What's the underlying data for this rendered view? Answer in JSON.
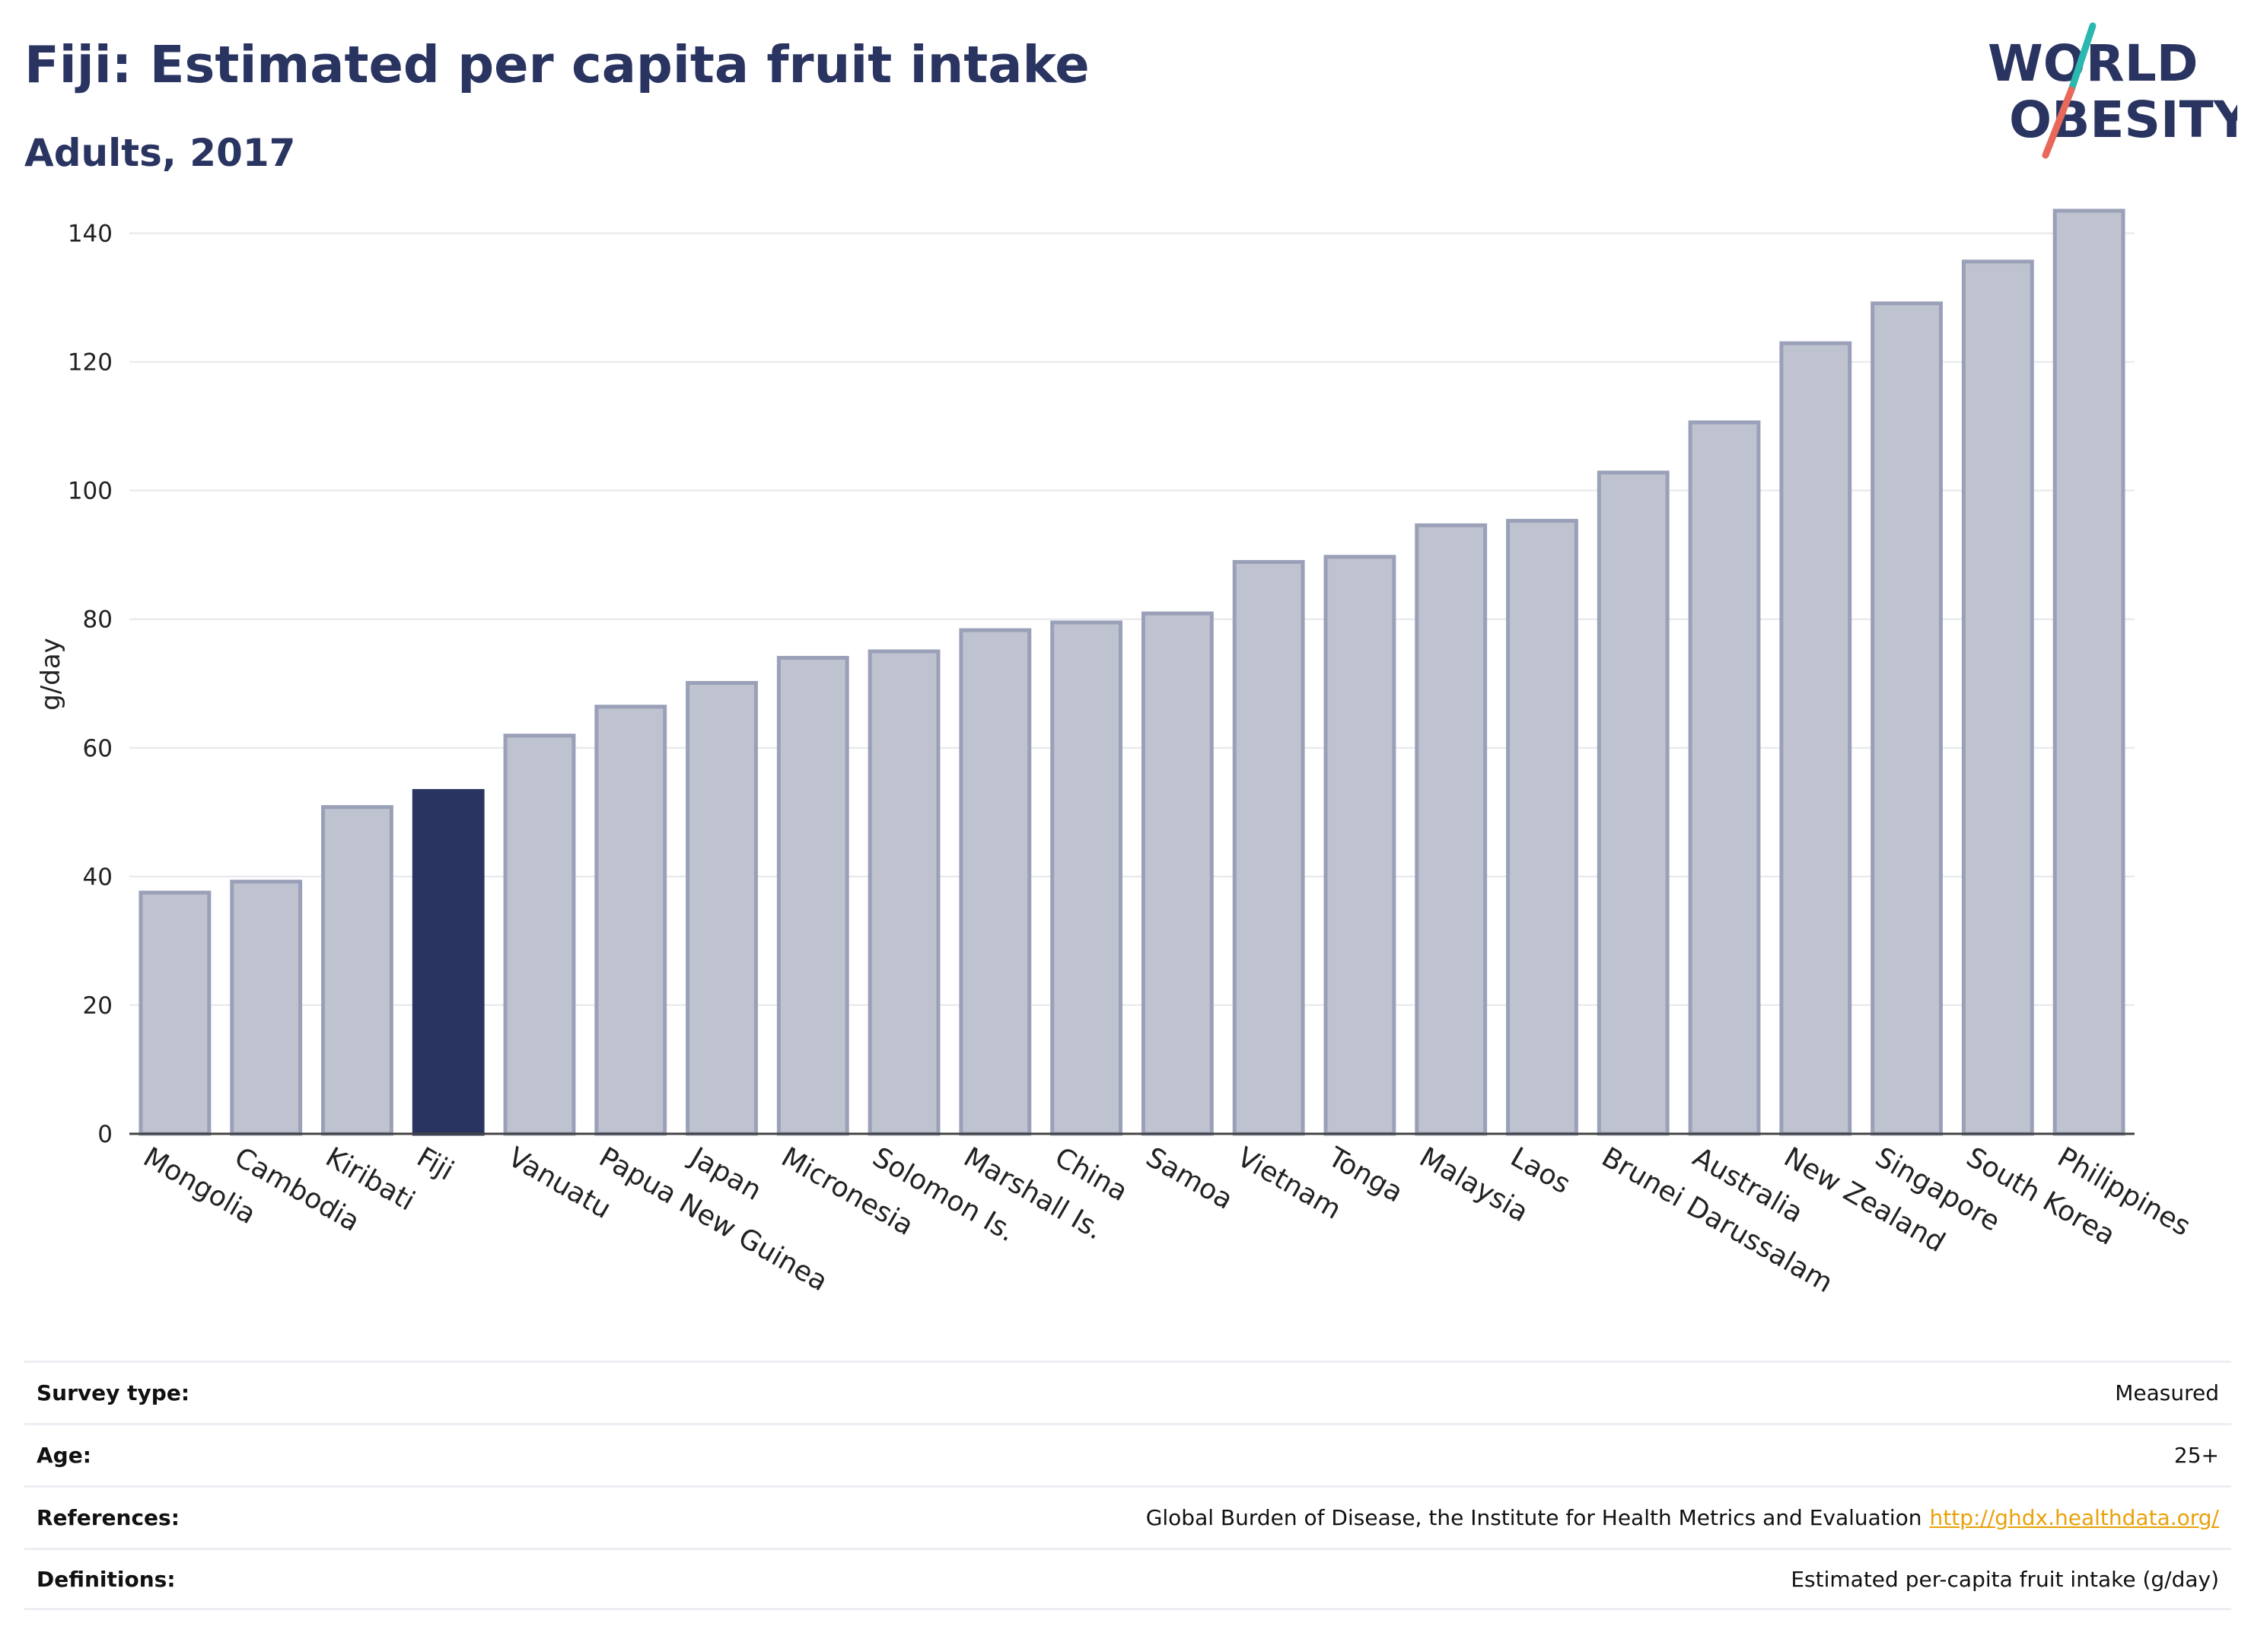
{
  "header": {
    "title": "Fiji: Estimated per capita fruit intake",
    "subtitle": "Adults, 2017"
  },
  "logo": {
    "line1": "WORLD",
    "line2": "OBESITY",
    "colors": {
      "text": "#2a3461",
      "slash_top": "#2bb8b0",
      "slash_bottom": "#e8685a"
    }
  },
  "chart_data": {
    "type": "bar",
    "ylabel": "g/day",
    "ylim": [
      0,
      150
    ],
    "yticks": [
      0,
      20,
      40,
      60,
      80,
      100,
      120,
      140
    ],
    "grid": true,
    "categories": [
      "Mongolia",
      "Cambodia",
      "Kiribati",
      "Fiji",
      "Vanuatu",
      "Papua New Guinea",
      "Japan",
      "Micronesia",
      "Solomon Is.",
      "Marshall Is.",
      "China",
      "Samoa",
      "Vietnam",
      "Tonga",
      "Malaysia",
      "Laos",
      "Brunei Darussalam",
      "Australia",
      "New Zealand",
      "Singapore",
      "South Korea",
      "Philippines"
    ],
    "values": [
      37.5,
      39.2,
      50.8,
      53.3,
      61.9,
      66.4,
      70.1,
      74.0,
      75.0,
      78.3,
      79.5,
      80.9,
      88.9,
      89.7,
      94.6,
      95.3,
      102.8,
      110.6,
      122.9,
      129.1,
      135.6,
      143.5
    ],
    "highlight": "Fiji",
    "colors": {
      "bar": "#bfc2cf",
      "bar_edge": "#9aa0b8",
      "highlight": "#2a3461"
    }
  },
  "meta": [
    {
      "label": "Survey type:",
      "value": "Measured"
    },
    {
      "label": "Age:",
      "value": "25+"
    },
    {
      "label": "References:",
      "value": "Global Burden of Disease, the Institute for Health Metrics and Evaluation",
      "link": "http://ghdx.healthdata.org/"
    },
    {
      "label": "Definitions:",
      "value": "Estimated per-capita fruit intake (g/day)"
    }
  ]
}
